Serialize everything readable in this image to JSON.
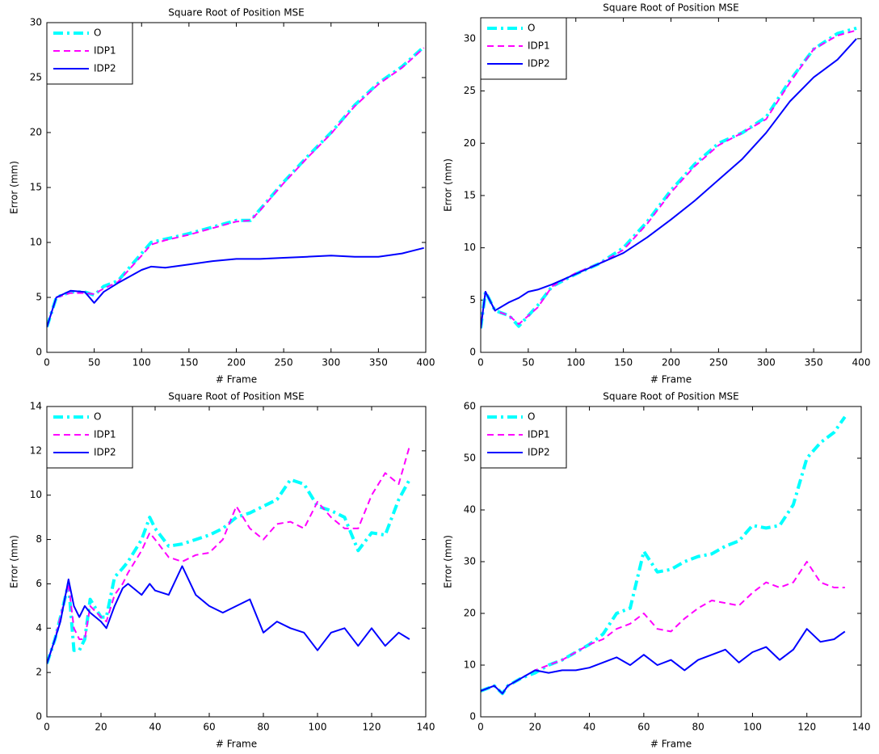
{
  "chart_data": [
    {
      "type": "line",
      "title": "Square Root of Position MSE",
      "xlabel": "# Frame",
      "ylabel": "Error (mm)",
      "x": [
        0,
        10,
        25,
        40,
        50,
        60,
        75,
        100,
        110,
        125,
        150,
        175,
        200,
        215,
        225,
        250,
        275,
        300,
        325,
        350,
        375,
        398
      ],
      "xlim": [
        0,
        400
      ],
      "xticks": [
        0,
        50,
        100,
        150,
        200,
        250,
        300,
        350,
        400
      ],
      "ylim": [
        0,
        30
      ],
      "yticks": [
        0,
        5,
        10,
        15,
        20,
        25,
        30
      ],
      "legend": "upper-left",
      "series": [
        {
          "name": "O",
          "color": "#00ffff",
          "linestyle": "dashdot",
          "linewidth": 4,
          "values": [
            2.3,
            5,
            5.5,
            5.5,
            5.2,
            6,
            6.5,
            9,
            10,
            10.3,
            10.8,
            11.4,
            12,
            12,
            13,
            15.5,
            17.8,
            20,
            22.5,
            24.5,
            26,
            27.8
          ]
        },
        {
          "name": "IDP1",
          "color": "#ff00ff",
          "linestyle": "dashed",
          "linewidth": 2,
          "values": [
            2.3,
            5,
            5.4,
            5.4,
            5.3,
            5.8,
            6.4,
            8.8,
            9.8,
            10.2,
            10.7,
            11.3,
            11.9,
            12,
            12.9,
            15.4,
            17.7,
            19.9,
            22.4,
            24.4,
            25.9,
            27.7
          ]
        },
        {
          "name": "IDP2",
          "color": "#0000ff",
          "linestyle": "solid",
          "linewidth": 2,
          "values": [
            2.3,
            5,
            5.6,
            5.5,
            4.5,
            5.5,
            6.3,
            7.5,
            7.8,
            7.7,
            8,
            8.3,
            8.5,
            8.5,
            8.5,
            8.6,
            8.7,
            8.8,
            8.7,
            8.7,
            9,
            9.5
          ]
        }
      ]
    },
    {
      "type": "line",
      "title": "Square Root of Position MSE",
      "xlabel": "# Frame",
      "ylabel": "Error (mm)",
      "x": [
        0,
        5,
        15,
        30,
        40,
        50,
        60,
        75,
        100,
        125,
        150,
        175,
        200,
        225,
        250,
        275,
        300,
        325,
        350,
        375,
        395
      ],
      "xlim": [
        0,
        400
      ],
      "xticks": [
        0,
        50,
        100,
        150,
        200,
        250,
        300,
        350,
        400
      ],
      "ylim": [
        0,
        32
      ],
      "yticks": [
        0,
        5,
        10,
        15,
        20,
        25,
        30
      ],
      "legend": "upper-left",
      "series": [
        {
          "name": "O",
          "color": "#00ffff",
          "linestyle": "dashdot",
          "linewidth": 4,
          "values": [
            2.3,
            5.8,
            4,
            3.5,
            2.5,
            3.5,
            4.5,
            6.3,
            7.5,
            8.5,
            10,
            12.5,
            15.5,
            18,
            20,
            21,
            22.5,
            26,
            29,
            30.5,
            31
          ]
        },
        {
          "name": "IDP1",
          "color": "#ff00ff",
          "linestyle": "dashed",
          "linewidth": 2,
          "values": [
            2.3,
            5.8,
            4,
            3.5,
            2.7,
            3.5,
            4.3,
            6.3,
            7.6,
            8.5,
            9.8,
            12.3,
            15.3,
            17.8,
            19.8,
            21,
            22.3,
            25.8,
            29,
            30.3,
            30.8
          ]
        },
        {
          "name": "IDP2",
          "color": "#0000ff",
          "linestyle": "solid",
          "linewidth": 2,
          "values": [
            2.3,
            5.8,
            4,
            4.8,
            5.2,
            5.8,
            6,
            6.5,
            7.5,
            8.5,
            9.5,
            11,
            12.7,
            14.5,
            16.5,
            18.5,
            21,
            24,
            26.3,
            28,
            30
          ]
        }
      ]
    },
    {
      "type": "line",
      "title": "Square Root of Position MSE",
      "xlabel": "# Frame",
      "ylabel": "Error (mm)",
      "x": [
        0,
        3,
        5,
        8,
        10,
        12,
        14,
        16,
        20,
        22,
        25,
        28,
        30,
        35,
        38,
        40,
        45,
        50,
        55,
        60,
        65,
        70,
        75,
        80,
        85,
        90,
        95,
        100,
        105,
        110,
        115,
        120,
        125,
        130,
        134
      ],
      "xlim": [
        0,
        140
      ],
      "xticks": [
        0,
        20,
        40,
        60,
        80,
        100,
        120,
        140
      ],
      "ylim": [
        0,
        14
      ],
      "yticks": [
        0,
        2,
        4,
        6,
        8,
        10,
        12,
        14
      ],
      "legend": "upper-left",
      "series": [
        {
          "name": "O",
          "color": "#00ffff",
          "linestyle": "dashdot",
          "linewidth": 4,
          "values": [
            2.4,
            3.5,
            4.5,
            6,
            3,
            3,
            3.5,
            5.3,
            4.5,
            4.5,
            6.3,
            6.7,
            7,
            8,
            9,
            8.5,
            7.7,
            7.8,
            8,
            8.2,
            8.5,
            9,
            9.2,
            9.5,
            9.8,
            10.7,
            10.5,
            9.5,
            9.3,
            9,
            7.5,
            8.3,
            8.2,
            9.8,
            10.7
          ]
        },
        {
          "name": "IDP1",
          "color": "#ff00ff",
          "linestyle": "dashed",
          "linewidth": 2,
          "values": [
            2.4,
            3.5,
            4.5,
            6,
            4,
            3.5,
            3.5,
            5,
            4.5,
            4.3,
            5.5,
            6,
            6.5,
            7.5,
            8.3,
            8,
            7.2,
            7,
            7.3,
            7.4,
            8,
            9.5,
            8.5,
            8,
            8.7,
            8.8,
            8.5,
            9.7,
            9,
            8.5,
            8.5,
            10,
            11,
            10.5,
            12.2
          ]
        },
        {
          "name": "IDP2",
          "color": "#0000ff",
          "linestyle": "solid",
          "linewidth": 2,
          "values": [
            2.4,
            3.5,
            4.3,
            6.2,
            5,
            4.5,
            5,
            4.7,
            4.3,
            4,
            5,
            5.8,
            6,
            5.5,
            6,
            5.7,
            5.5,
            6.8,
            5.5,
            5,
            4.7,
            5,
            5.3,
            3.8,
            4.3,
            4,
            3.8,
            3,
            3.8,
            4,
            3.2,
            4,
            3.2,
            3.8,
            3.5
          ]
        }
      ]
    },
    {
      "type": "line",
      "title": "Square Root of Position MSE",
      "xlabel": "# Frame",
      "ylabel": "Error (mm)",
      "x": [
        0,
        5,
        8,
        10,
        15,
        20,
        25,
        30,
        35,
        40,
        45,
        50,
        55,
        60,
        65,
        70,
        75,
        80,
        85,
        90,
        95,
        100,
        105,
        110,
        115,
        120,
        125,
        130,
        134
      ],
      "xlim": [
        0,
        140
      ],
      "xticks": [
        0,
        20,
        40,
        60,
        80,
        100,
        120,
        140
      ],
      "ylim": [
        0,
        60
      ],
      "yticks": [
        0,
        10,
        20,
        30,
        40,
        50,
        60
      ],
      "legend": "upper-left",
      "series": [
        {
          "name": "O",
          "color": "#00ffff",
          "linestyle": "dashdot",
          "linewidth": 4,
          "values": [
            5,
            6,
            4.5,
            6,
            7.5,
            8.5,
            10,
            11,
            12.5,
            14,
            16,
            20,
            21,
            32,
            28,
            28.5,
            30,
            31,
            31.5,
            33,
            34,
            37,
            36.5,
            37,
            41,
            50,
            53,
            55,
            58
          ]
        },
        {
          "name": "IDP1",
          "color": "#ff00ff",
          "linestyle": "dashed",
          "linewidth": 2,
          "values": [
            5,
            6,
            4.5,
            6,
            7.5,
            9,
            10,
            11,
            12.5,
            14,
            15,
            17,
            18,
            20,
            17,
            16.5,
            19,
            21,
            22.5,
            22,
            21.5,
            24,
            26,
            25,
            26,
            30,
            26,
            25,
            25
          ]
        },
        {
          "name": "IDP2",
          "color": "#0000ff",
          "linestyle": "solid",
          "linewidth": 2,
          "values": [
            5,
            6,
            4.5,
            6,
            7.5,
            9,
            8.5,
            9,
            9,
            9.5,
            10.5,
            11.5,
            10,
            12,
            10,
            11,
            9,
            11,
            12,
            13,
            10.5,
            12.5,
            13.5,
            11,
            13,
            17,
            14.5,
            15,
            16.5
          ]
        }
      ]
    }
  ]
}
